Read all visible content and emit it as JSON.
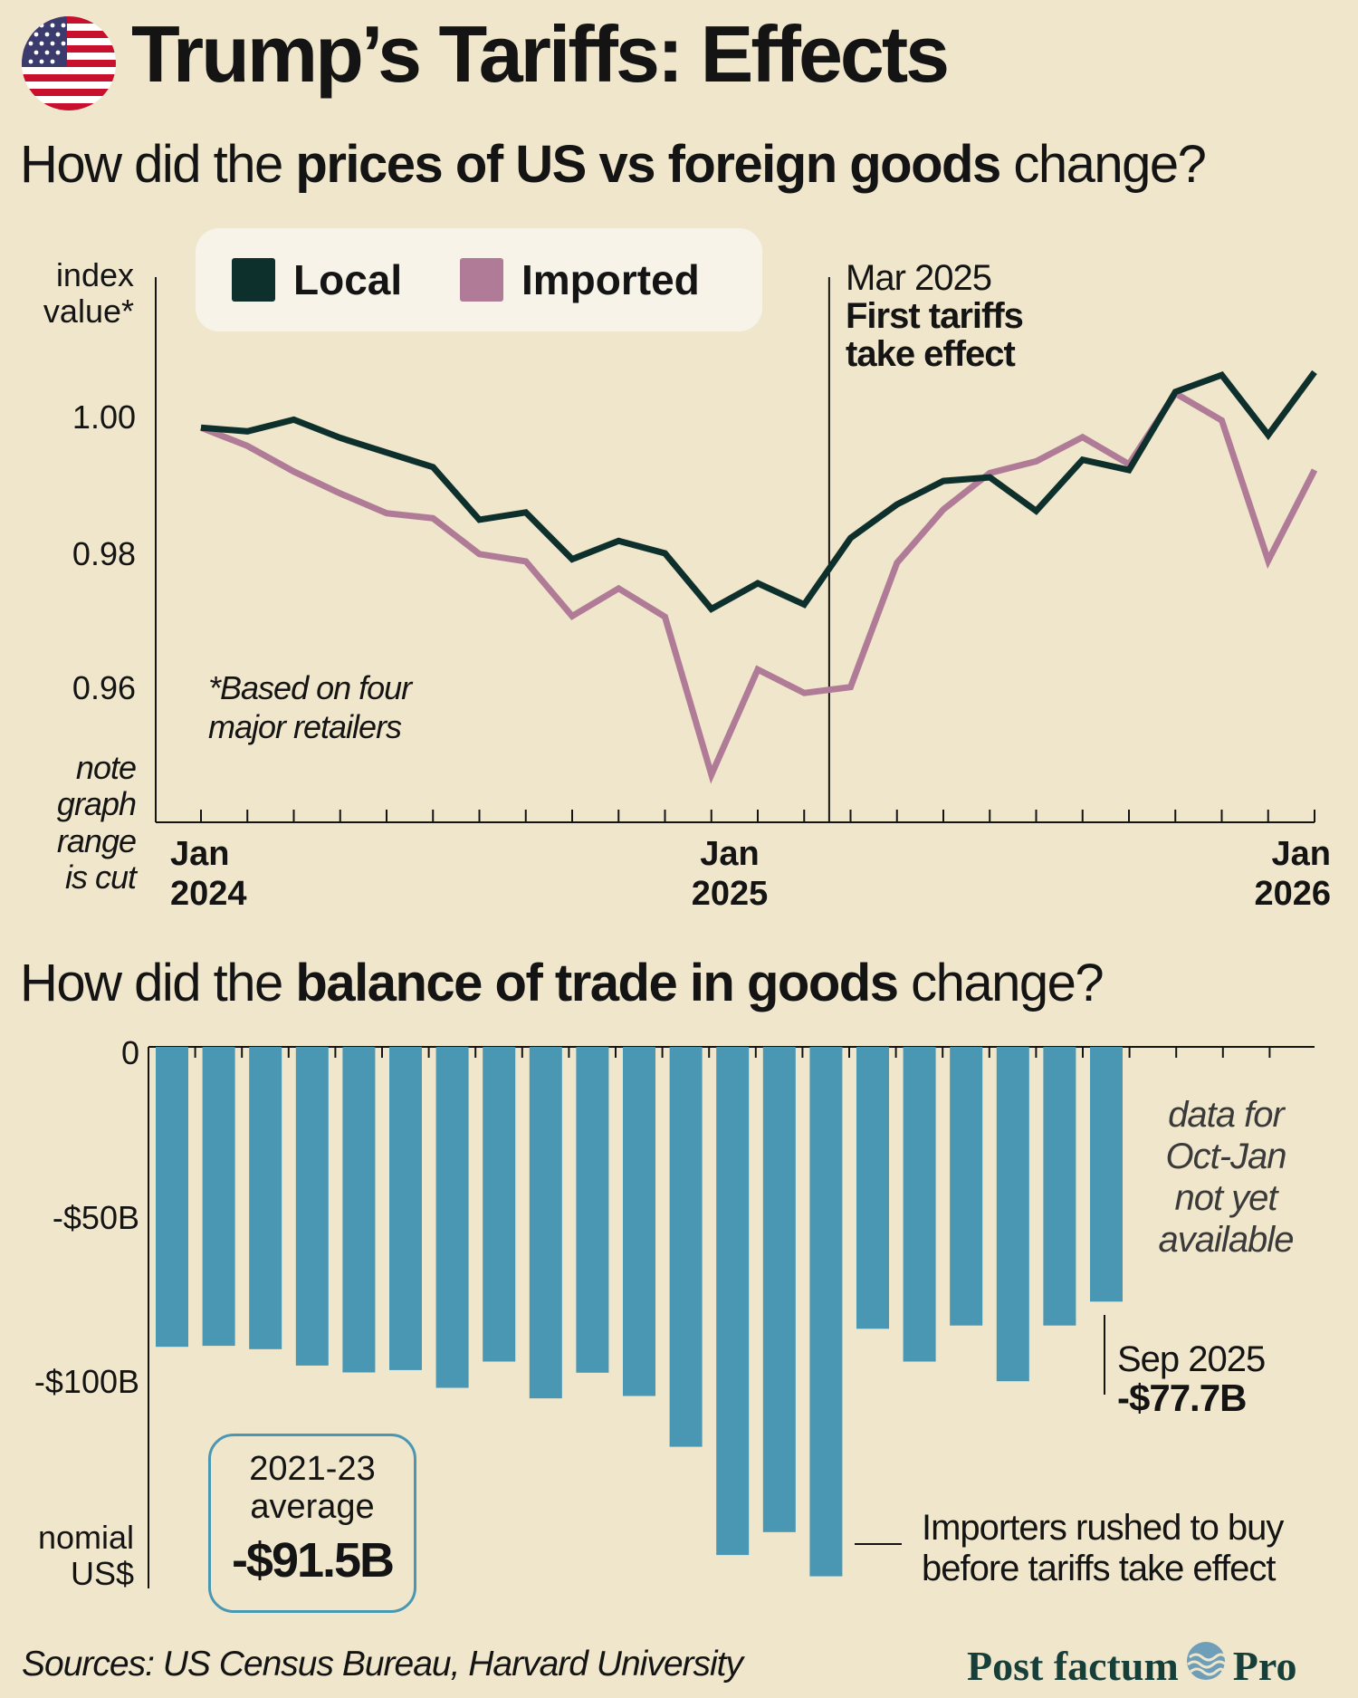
{
  "title": "Trump’s Tariffs: Effects",
  "colors": {
    "background": "#efe6cb",
    "local": "#0e302d",
    "imported": "#b07b97",
    "bars": "#4a97b3",
    "brand": "#173f3a"
  },
  "price_section": {
    "question_pre": "How did the ",
    "question_bold": "prices of US vs foreign goods",
    "question_post": " change?",
    "legend": {
      "local": "Local",
      "imported": "Imported"
    },
    "ylabel_line1": "index",
    "ylabel_line2": "value*",
    "yticks": [
      "1.00",
      "0.98",
      "0.96"
    ],
    "range_note_lines": [
      "note",
      "graph",
      "range",
      "is cut"
    ],
    "footnote_lines": [
      "*Based on four",
      "major retailers"
    ],
    "xtick_labels": [
      {
        "month": "Jan",
        "year": "2024"
      },
      {
        "month": "Jan",
        "year": "2025"
      },
      {
        "month": "Jan",
        "year": "2026"
      }
    ],
    "tariff_annotation": {
      "date": "Mar 2025",
      "line1": "First tariffs",
      "line2": "take effect"
    }
  },
  "trade_section": {
    "question_pre": "How did the ",
    "question_bold": "balance of trade in goods",
    "question_post": " change?",
    "yticks": [
      "0",
      "-$50B",
      "-$100B"
    ],
    "ylabel_line1": "nomial",
    "ylabel_line2": "US$",
    "missing_note_lines": [
      "data for",
      "Oct-Jan",
      "not yet",
      "available"
    ],
    "last_value": {
      "date": "Sep 2025",
      "value": "-$77.7B"
    },
    "rush_note_lines": [
      "Importers rushed to buy",
      "before tariffs take effect"
    ],
    "average_box": {
      "line1": "2021-23",
      "line2": "average",
      "value": "-$91.5B"
    }
  },
  "chart_data": [
    {
      "type": "line",
      "title": "How did the prices of US vs foreign goods change?",
      "ylabel": "index value*",
      "x": [
        "2024-01",
        "2024-02",
        "2024-03",
        "2024-04",
        "2024-05",
        "2024-06",
        "2024-07",
        "2024-08",
        "2024-09",
        "2024-10",
        "2024-11",
        "2024-12",
        "2025-01",
        "2025-02",
        "2025-03",
        "2025-04",
        "2025-05",
        "2025-06",
        "2025-07",
        "2025-08",
        "2025-09",
        "2025-10",
        "2025-11",
        "2025-12",
        "2026-01"
      ],
      "series": [
        {
          "name": "Local",
          "values": [
            1.0,
            0.9995,
            1.0011,
            0.9986,
            0.9966,
            0.9946,
            0.9874,
            0.9884,
            0.982,
            0.9845,
            0.9828,
            0.9752,
            0.9787,
            0.9758,
            0.9849,
            0.9895,
            0.9927,
            0.9932,
            0.9886,
            0.9956,
            0.9942,
            1.0049,
            1.0072,
            0.999,
            1.0076
          ]
        },
        {
          "name": "Imported",
          "values": [
            1.0,
            0.9975,
            0.994,
            0.991,
            0.9883,
            0.9876,
            0.9827,
            0.9817,
            0.9742,
            0.978,
            0.9741,
            0.9525,
            0.9669,
            0.9637,
            0.9645,
            0.9815,
            0.9888,
            0.9938,
            0.9954,
            0.9987,
            0.995,
            1.0047,
            1.001,
            0.9818,
            0.9942
          ]
        }
      ],
      "ylim": [
        0.946,
        1.0206
      ],
      "annotation": {
        "x": "2025-03",
        "text": "Mar 2025 First tariffs take effect"
      }
    },
    {
      "type": "bar",
      "title": "How did the balance of trade in goods change?",
      "ylabel": "nomial US$",
      "categories": [
        "2024-01",
        "2024-02",
        "2024-03",
        "2024-04",
        "2024-05",
        "2024-06",
        "2024-07",
        "2024-08",
        "2024-09",
        "2024-10",
        "2024-11",
        "2024-12",
        "2025-01",
        "2025-02",
        "2025-03",
        "2025-04",
        "2025-05",
        "2025-06",
        "2025-07",
        "2025-08",
        "2025-09"
      ],
      "values": [
        -91.5,
        -91.2,
        -92.2,
        -97.2,
        -99.3,
        -98.6,
        -104.0,
        -96.0,
        -107.2,
        -99.4,
        -106.5,
        -122.0,
        -155.0,
        -148.0,
        -161.5,
        -86.0,
        -96.0,
        -85.0,
        -102.0,
        -85.0,
        -77.7
      ],
      "ylim": [
        -165,
        0
      ],
      "unit": "billion US$",
      "reference": {
        "label": "2021-23 average",
        "value": -91.5
      }
    }
  ]
}
